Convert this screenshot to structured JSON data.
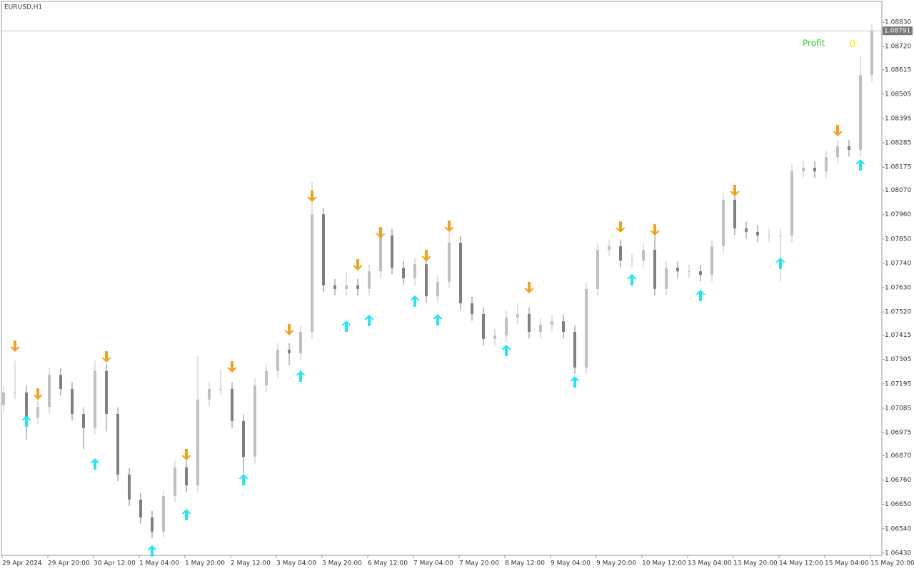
{
  "chart_data": {
    "type": "candlestick",
    "title": "EURUSD,H1",
    "categories": [
      "29 Apr 2024",
      null,
      null,
      null,
      "29 Apr 20:00",
      null,
      null,
      null,
      "30 Apr 12:00",
      null,
      null,
      null,
      "1 May 04:00",
      null,
      null,
      null,
      "1 May 20:00",
      null,
      null,
      null,
      "2 May 12:00",
      null,
      null,
      null,
      "3 May 04:00",
      null,
      null,
      null,
      "3 May 20:00",
      null,
      null,
      null,
      "6 May 12:00",
      null,
      null,
      null,
      "7 May 04:00",
      null,
      null,
      null,
      "7 May 20:00",
      null,
      null,
      null,
      "8 May 12:00",
      null,
      null,
      null,
      "9 May 04:00",
      null,
      null,
      null,
      "9 May 20:00",
      null,
      null,
      null,
      "10 May 12:00",
      null,
      null,
      null,
      "13 May 04:00",
      null,
      null,
      null,
      "13 May 20:00",
      null,
      null,
      null,
      "14 May 12:00",
      null,
      null,
      null,
      "15 May 04:00",
      null,
      null,
      null,
      "15 May 20:00"
    ],
    "open": [
      1.071,
      1.07156,
      1.07156,
      1.07043,
      1.07091,
      1.07236,
      1.07172,
      1.07059,
      1.06995,
      1.07253,
      1.07059,
      1.06785,
      1.06672,
      1.06591,
      1.06527,
      1.06688,
      1.06817,
      1.06736,
      1.07124,
      1.07172,
      1.07172,
      1.07027,
      1.06865,
      1.07188,
      1.07253,
      1.07349,
      1.07333,
      1.0743,
      1.07962,
      1.0764,
      1.07624,
      1.0764,
      1.07624,
      1.07704,
      1.07866,
      1.0772,
      1.07672,
      1.07736,
      1.07591,
      1.07656,
      1.07833,
      1.07559,
      1.07511,
      1.07398,
      1.07414,
      1.07495,
      1.07511,
      1.0743,
      1.07462,
      1.07478,
      1.0743,
      1.07269,
      1.07624,
      1.07801,
      1.07817,
      1.07753,
      1.07753,
      1.07801,
      1.07624,
      1.0772,
      1.07704,
      1.07704,
      1.07688,
      1.07817,
      1.08027,
      1.07898,
      1.07882,
      1.07866,
      1.07866,
      1.07866,
      1.08156,
      1.08172,
      1.08156,
      1.0822,
      1.08269,
      1.08253,
      1.08591
    ],
    "high": [
      1.07186,
      1.073,
      1.07186,
      1.07121,
      1.07266,
      1.07266,
      1.07202,
      1.07089,
      1.073,
      1.07283,
      1.07089,
      1.06815,
      1.06702,
      1.06621,
      1.06718,
      1.06847,
      1.06847,
      1.0732,
      1.07202,
      1.0726,
      1.07202,
      1.07057,
      1.07218,
      1.07283,
      1.07379,
      1.07379,
      1.0746,
      1.08107,
      1.07992,
      1.0767,
      1.077,
      1.0767,
      1.07734,
      1.07896,
      1.07896,
      1.0775,
      1.07766,
      1.07766,
      1.07686,
      1.0788,
      1.07863,
      1.07589,
      1.07541,
      1.07444,
      1.07525,
      1.0756,
      1.07541,
      1.07492,
      1.07508,
      1.07508,
      1.0746,
      1.07654,
      1.07831,
      1.07847,
      1.07847,
      1.07783,
      1.07831,
      1.0788,
      1.0775,
      1.0775,
      1.07734,
      1.07734,
      1.07847,
      1.08057,
      1.08057,
      1.07928,
      1.07912,
      1.07896,
      1.07896,
      1.08186,
      1.08202,
      1.08202,
      1.0825,
      1.08299,
      1.08299,
      1.0868,
      1.08821
    ],
    "low": [
      1.0707,
      1.07126,
      1.0694,
      1.07013,
      1.07061,
      1.07142,
      1.07029,
      1.069,
      1.06965,
      1.0698,
      1.06755,
      1.06642,
      1.06561,
      1.06497,
      1.06497,
      1.06658,
      1.06706,
      1.06706,
      1.07094,
      1.07142,
      1.06997,
      1.0679,
      1.06835,
      1.07158,
      1.07223,
      1.0728,
      1.07303,
      1.074,
      1.0761,
      1.07594,
      1.07594,
      1.07594,
      1.07594,
      1.07674,
      1.0769,
      1.07642,
      1.07642,
      1.07561,
      1.07561,
      1.07626,
      1.07529,
      1.07481,
      1.07368,
      1.07368,
      1.07384,
      1.07465,
      1.074,
      1.074,
      1.07432,
      1.074,
      1.07239,
      1.07239,
      1.07594,
      1.07771,
      1.07723,
      1.07723,
      1.07723,
      1.07594,
      1.07594,
      1.07674,
      1.07674,
      1.07658,
      1.07658,
      1.07787,
      1.07868,
      1.07852,
      1.07836,
      1.07836,
      1.07656,
      1.07836,
      1.08126,
      1.08126,
      1.08126,
      1.0819,
      1.08223,
      1.08223,
      1.08561
    ],
    "close": [
      1.07156,
      1.07156,
      1.07043,
      1.07091,
      1.07236,
      1.07172,
      1.07059,
      1.06995,
      1.07253,
      1.07059,
      1.06785,
      1.06672,
      1.06591,
      1.06527,
      1.06688,
      1.06817,
      1.06736,
      1.07124,
      1.07172,
      1.07172,
      1.07027,
      1.06865,
      1.07188,
      1.07253,
      1.07349,
      1.07333,
      1.0743,
      1.07962,
      1.0764,
      1.07624,
      1.0764,
      1.07624,
      1.07704,
      1.07866,
      1.0772,
      1.07672,
      1.07736,
      1.07591,
      1.07656,
      1.07833,
      1.07559,
      1.07511,
      1.07398,
      1.07414,
      1.07495,
      1.07511,
      1.0743,
      1.07462,
      1.07478,
      1.0743,
      1.07269,
      1.07624,
      1.07801,
      1.07817,
      1.07753,
      1.07753,
      1.07801,
      1.07624,
      1.0772,
      1.07704,
      1.07704,
      1.07688,
      1.07817,
      1.08027,
      1.07898,
      1.07882,
      1.07866,
      1.07866,
      1.07866,
      1.08156,
      1.08172,
      1.08156,
      1.0822,
      1.08269,
      1.08253,
      1.08591,
      1.08791
    ],
    "up_color": "#c0c0c0",
    "down_color": "#808080",
    "sell_signals": {
      "color": "#f5a01a",
      "index": [
        1,
        3,
        9,
        16,
        20,
        25,
        27,
        31,
        33,
        37,
        39,
        46,
        54,
        57,
        64,
        73
      ],
      "price": [
        1.07366,
        1.07149,
        1.07317,
        1.06875,
        1.07272,
        1.0744,
        1.08043,
        1.07733,
        1.07878,
        1.07775,
        1.07907,
        1.0763,
        1.07904,
        1.07891,
        1.08069,
        1.0834
      ]
    },
    "buy_signals": {
      "color": "#22e6f5",
      "index": [
        2,
        8,
        13,
        16,
        21,
        26,
        30,
        32,
        36,
        38,
        44,
        50,
        55,
        61,
        68,
        75
      ],
      "price": [
        1.07027,
        1.06833,
        1.0644,
        1.06604,
        1.06762,
        1.0723,
        1.07456,
        1.07482,
        1.07569,
        1.07485,
        1.07346,
        1.07204,
        1.07666,
        1.07595,
        1.0774,
        1.08185
      ]
    },
    "price_label": {
      "value": 1.08791,
      "label": "1.08791"
    },
    "profit_label": "Profit",
    "profit_value": 0,
    "ylim": [
      1.0642,
      1.08924
    ],
    "yticks": [
      {
        "value": 1.0883,
        "label": "1.08830"
      },
      {
        "value": 1.0872,
        "label": "1.08720"
      },
      {
        "value": 1.08615,
        "label": "1.08615"
      },
      {
        "value": 1.08505,
        "label": "1.08505"
      },
      {
        "value": 1.08395,
        "label": "1.08395"
      },
      {
        "value": 1.08285,
        "label": "1.08285"
      },
      {
        "value": 1.08175,
        "label": "1.08175"
      },
      {
        "value": 1.0807,
        "label": "1.08070"
      },
      {
        "value": 1.0796,
        "label": "1.07960"
      },
      {
        "value": 1.0785,
        "label": "1.07850"
      },
      {
        "value": 1.0774,
        "label": "1.07740"
      },
      {
        "value": 1.0763,
        "label": "1.07630"
      },
      {
        "value": 1.0752,
        "label": "1.07520"
      },
      {
        "value": 1.07415,
        "label": "1.07415"
      },
      {
        "value": 1.07305,
        "label": "1.07305"
      },
      {
        "value": 1.07195,
        "label": "1.07195"
      },
      {
        "value": 1.07085,
        "label": "1.07085"
      },
      {
        "value": 1.06975,
        "label": "1.06975"
      },
      {
        "value": 1.0687,
        "label": "1.06870"
      },
      {
        "value": 1.0676,
        "label": "1.06760"
      },
      {
        "value": 1.0665,
        "label": "1.06650"
      },
      {
        "value": 1.0654,
        "label": "1.06540"
      },
      {
        "value": 1.0643,
        "label": "1.06430"
      }
    ],
    "grid": false
  }
}
